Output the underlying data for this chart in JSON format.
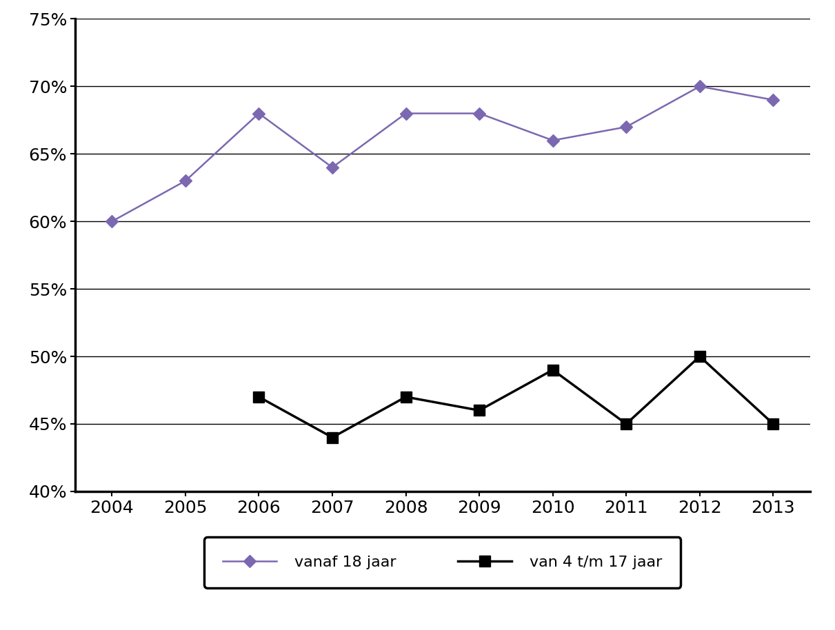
{
  "years_adult": [
    2004,
    2005,
    2006,
    2007,
    2008,
    2009,
    2010,
    2011,
    2012,
    2013
  ],
  "values_adult": [
    0.6,
    0.63,
    0.68,
    0.64,
    0.68,
    0.68,
    0.66,
    0.67,
    0.7,
    0.69
  ],
  "years_youth": [
    2006,
    2007,
    2008,
    2009,
    2010,
    2011,
    2012,
    2013
  ],
  "values_youth": [
    0.47,
    0.44,
    0.47,
    0.46,
    0.49,
    0.45,
    0.5,
    0.45
  ],
  "color_adult": "#7B68B0",
  "color_youth": "#000000",
  "ylim_min": 0.4,
  "ylim_max": 0.75,
  "yticks": [
    0.4,
    0.45,
    0.5,
    0.55,
    0.6,
    0.65,
    0.7,
    0.75
  ],
  "xlim_min": 2003.5,
  "xlim_max": 2013.5,
  "xticks": [
    2004,
    2005,
    2006,
    2007,
    2008,
    2009,
    2010,
    2011,
    2012,
    2013
  ],
  "legend_adult": "vanaf 18 jaar",
  "legend_youth": "van 4 t/m 17 jaar",
  "background_color": "#ffffff",
  "grid_color": "#000000",
  "spine_color": "#000000",
  "tick_label_fontsize": 18,
  "legend_fontsize": 16
}
